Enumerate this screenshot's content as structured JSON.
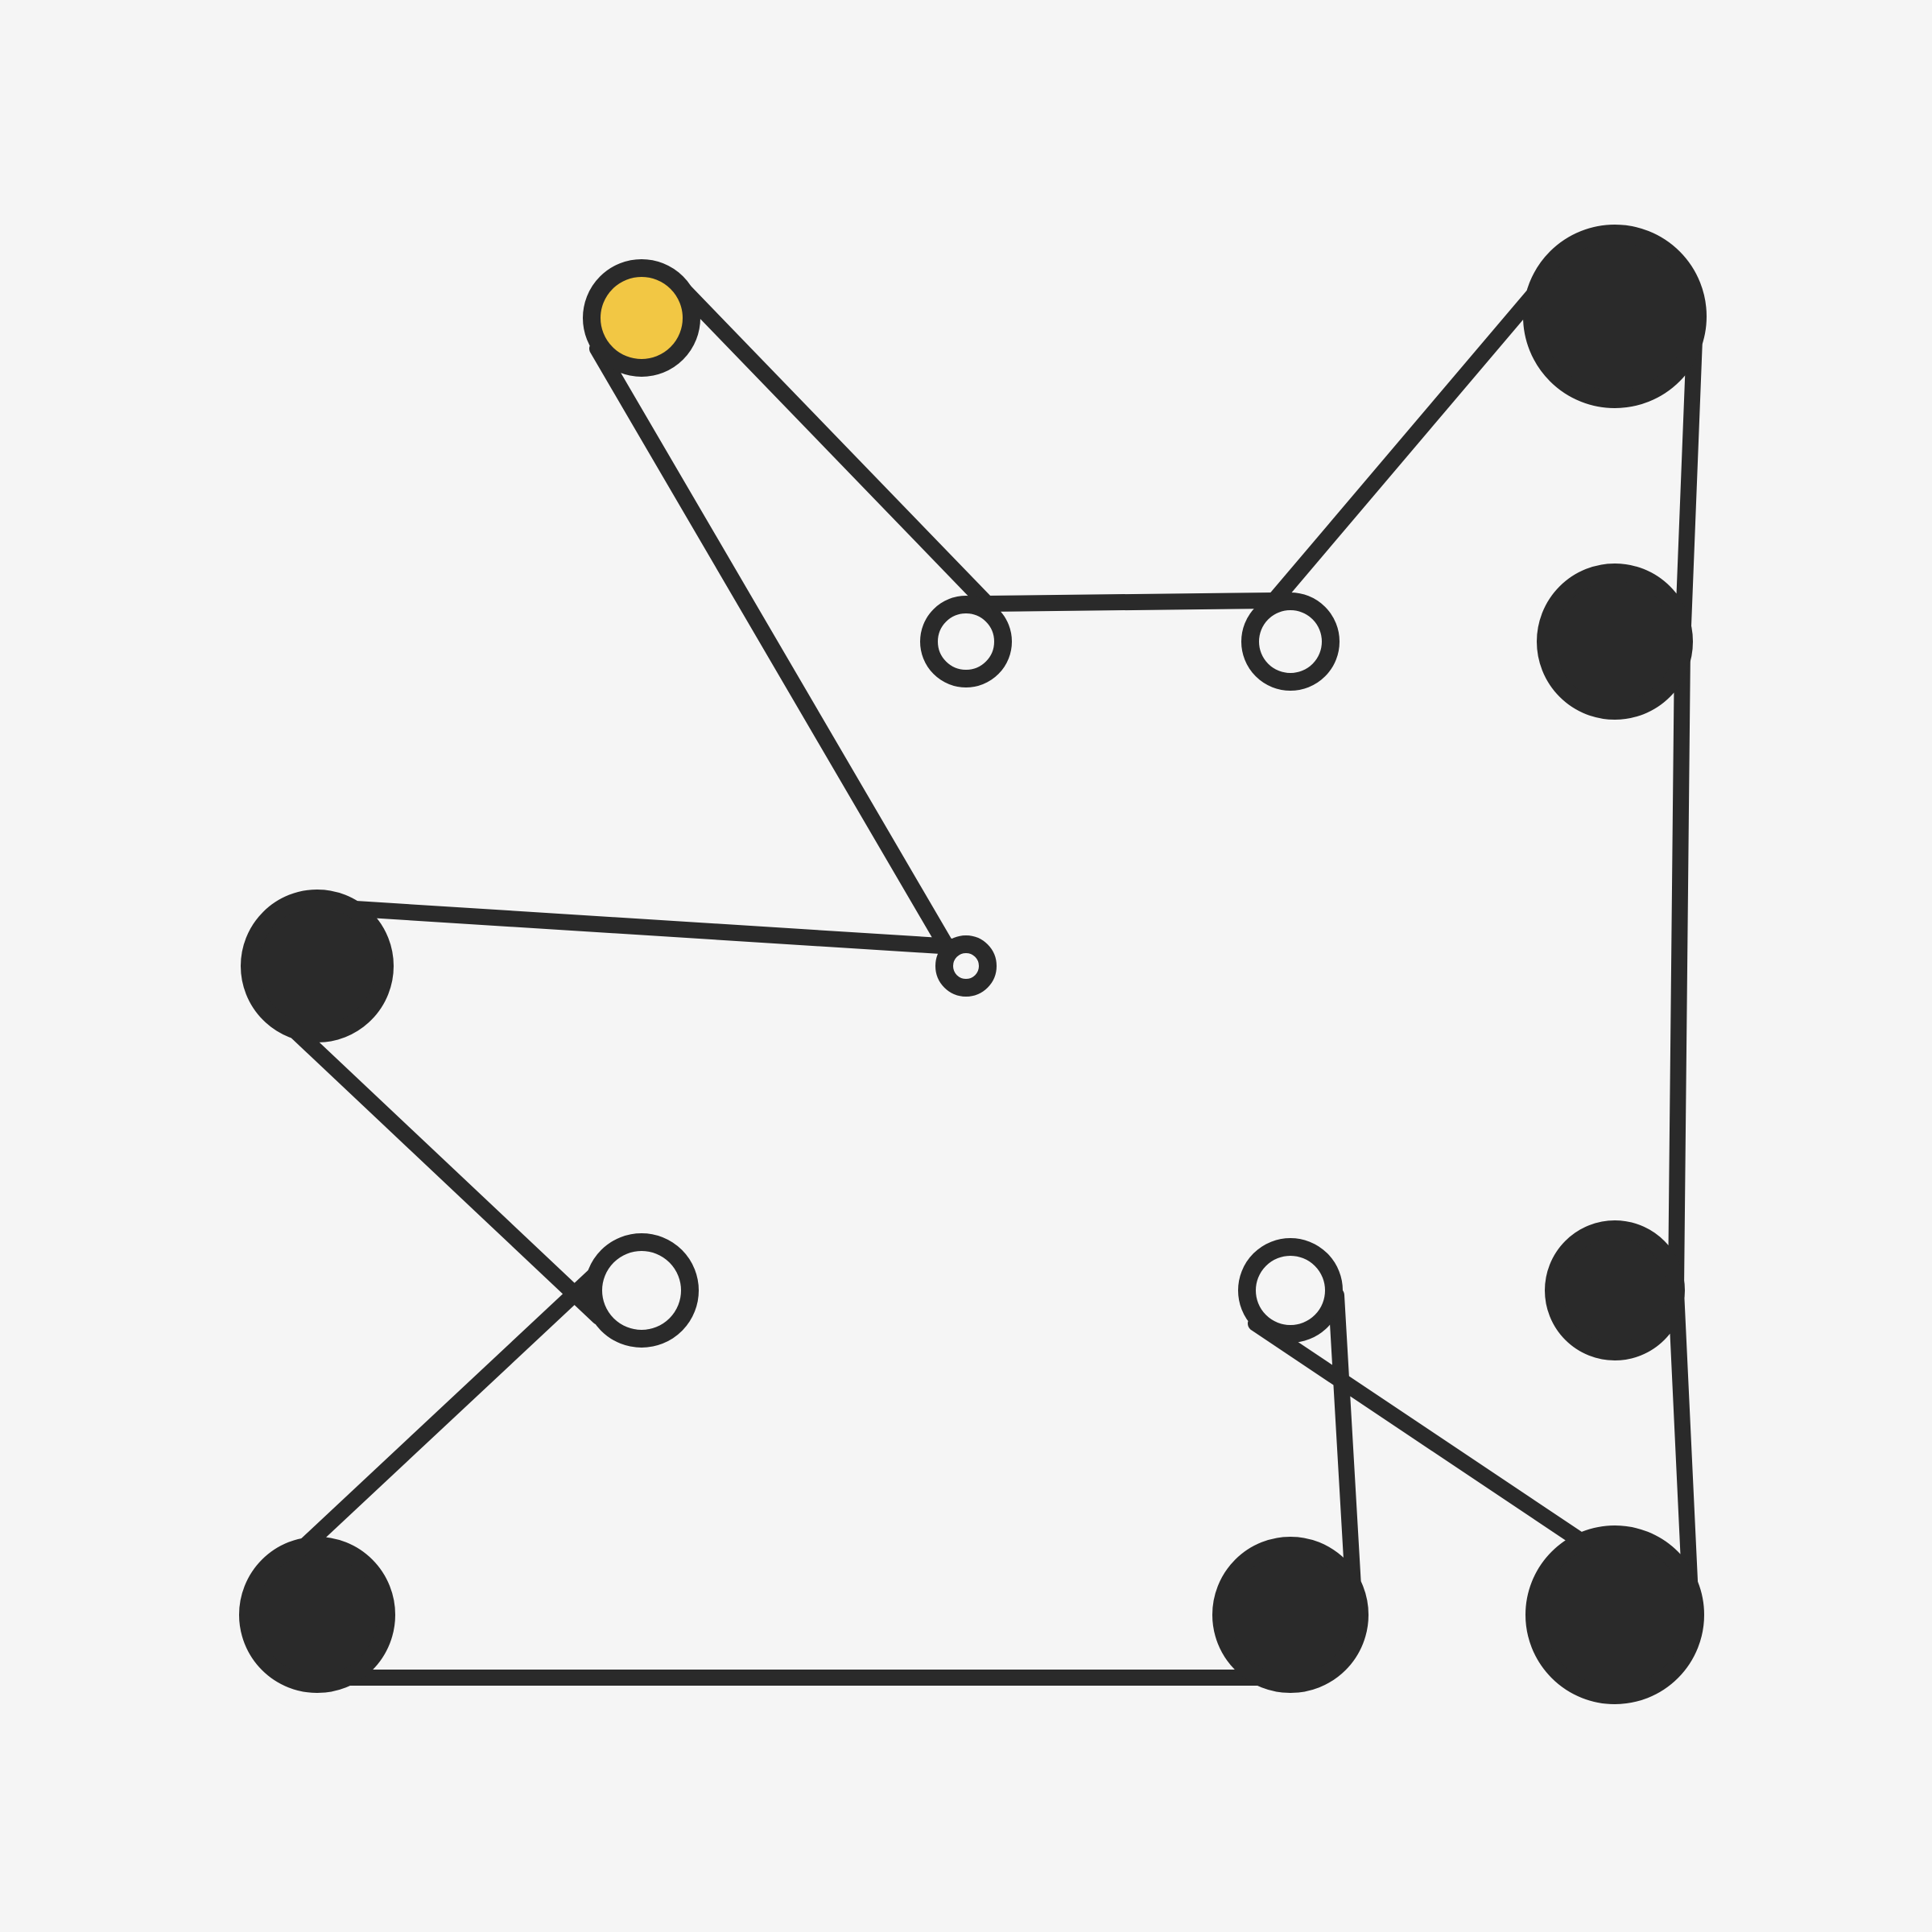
{
  "game": {
    "colors": {
      "background": "#f5f5f5",
      "ink": "#2a2a2a",
      "highlight": "#f2c744",
      "hollow": "#f5f5f5"
    },
    "nodes": [
      {
        "id": "n-yellow-start",
        "style": "highlight",
        "icon": "yellow-circle"
      },
      {
        "id": "n-top-mid",
        "style": "hollow",
        "icon": "open-circle"
      },
      {
        "id": "n-top-right-mid",
        "style": "hollow",
        "icon": "open-circle"
      },
      {
        "id": "n-top-right",
        "style": "filled",
        "icon": "filled-circle"
      },
      {
        "id": "n-right-upper",
        "style": "filled",
        "icon": "filled-circle"
      },
      {
        "id": "n-center-tiny",
        "style": "hollow",
        "icon": "open-circle"
      },
      {
        "id": "n-left-upper",
        "style": "filled",
        "icon": "filled-circle"
      },
      {
        "id": "n-center-left",
        "style": "hollow",
        "icon": "open-circle"
      },
      {
        "id": "n-center-right",
        "style": "hollow",
        "icon": "open-circle"
      },
      {
        "id": "n-right-lower",
        "style": "filled",
        "icon": "filled-circle"
      },
      {
        "id": "n-bottom-left",
        "style": "filled",
        "icon": "filled-circle"
      },
      {
        "id": "n-bottom-mid",
        "style": "filled",
        "icon": "filled-circle"
      },
      {
        "id": "n-bottom-right",
        "style": "filled",
        "icon": "filled-circle"
      }
    ]
  }
}
